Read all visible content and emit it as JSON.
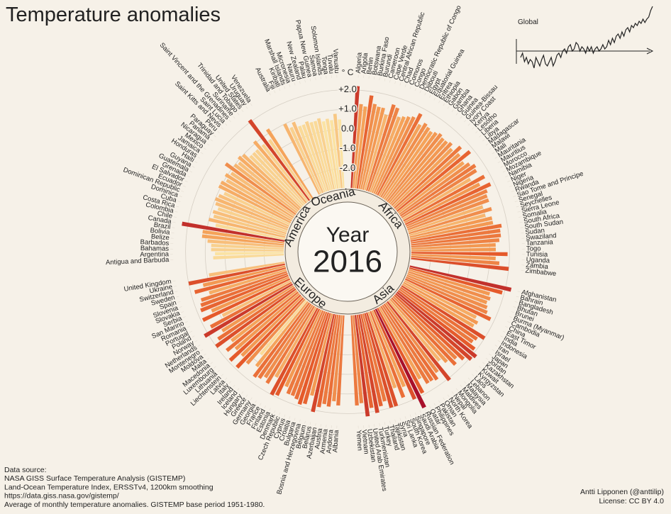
{
  "chart_data": [
    {
      "type": "radial-bar",
      "title": "Temperature anomalies",
      "unit_label": "° C",
      "center_label": "Year",
      "center_value": "2016",
      "ylim": [
        -3,
        2.6
      ],
      "yticks": [
        {
          "value": -2,
          "label": "-2.0"
        },
        {
          "value": -1,
          "label": "-1.0"
        },
        {
          "value": 0,
          "label": "0.0"
        },
        {
          "value": 1,
          "label": "+1.0"
        },
        {
          "value": 2,
          "label": "+2.0"
        }
      ],
      "grid": true,
      "colors": [
        "#fbe3a4",
        "#f5a35a",
        "#e55a2b",
        "#a8102b"
      ],
      "groups": [
        {
          "name": "Africa",
          "categories": [
            "Algeria",
            "Angola",
            "Benin",
            "Botswana",
            "Burkina Faso",
            "Burundi",
            "Cameroon",
            "Cape Verde",
            "Central African Republic",
            "Chad",
            "Comoros",
            "Congo",
            "Democratic Republic of Congo",
            "Djibouti",
            "Egypt",
            "Equatorial Guinea",
            "Eritrea",
            "Ethiopia",
            "Gabon",
            "Gambia",
            "Ghana",
            "Guinea",
            "Guinea-Bissau",
            "Ivory Coast",
            "Kenya",
            "Lesotho",
            "Liberia",
            "Libya",
            "Madagascar",
            "Malawi",
            "Mali",
            "Mauritania",
            "Mauritius",
            "Morocco",
            "Mozambique",
            "Namibia",
            "Niger",
            "Nigeria",
            "Rwanda",
            "Sao Tome and Principe",
            "Senegal",
            "Seychelles",
            "Sierra Leone",
            "Somalia",
            "South Africa",
            "South Sudan",
            "Sudan",
            "Swaziland",
            "Tanzania",
            "Togo",
            "Tunisia",
            "Uganda",
            "Zambia",
            "Zimbabwe"
          ],
          "values": [
            2.2,
            1.3,
            1.2,
            1.8,
            1.4,
            1.3,
            1.3,
            1.0,
            1.6,
            1.5,
            1.1,
            1.2,
            1.3,
            1.4,
            1.7,
            1.2,
            1.4,
            1.3,
            1.2,
            1.3,
            1.4,
            1.3,
            1.3,
            1.4,
            1.2,
            1.6,
            1.3,
            1.8,
            1.2,
            1.4,
            1.6,
            1.5,
            1.0,
            1.7,
            1.3,
            1.8,
            1.5,
            1.4,
            1.4,
            1.0,
            1.4,
            1.0,
            1.3,
            1.3,
            1.7,
            1.6,
            1.6,
            1.5,
            1.3,
            1.3,
            1.9,
            1.3,
            1.5,
            2.0
          ]
        },
        {
          "name": "Asia",
          "categories": [
            "Afghanistan",
            "Bahrain",
            "Bangladesh",
            "Bhutan",
            "Brunei",
            "Burma (Myanmar)",
            "Cambodia",
            "China",
            "East Timor",
            "India",
            "Indonesia",
            "Iran",
            "Israel",
            "Japan",
            "Jordan",
            "Kazakhstan",
            "Kuwait",
            "Kyrgyzstan",
            "Laos",
            "Lebanon",
            "Malaysia",
            "Maldives",
            "Mongolia",
            "Nepal",
            "North Korea",
            "Oman",
            "Pakistan",
            "Philippines",
            "Qatar",
            "Russian Federation",
            "Saudi Arabia",
            "Singapore",
            "South Korea",
            "Sri Lanka",
            "Syria",
            "Tajikistan",
            "Thailand",
            "Turkey",
            "Turkmenistan",
            "United Arab Emirates",
            "Uzbekistan",
            "Vietnam",
            "Yemen"
          ],
          "values": [
            2.3,
            1.9,
            1.3,
            1.4,
            1.3,
            1.4,
            1.5,
            1.8,
            1.1,
            1.3,
            1.2,
            2.0,
            1.7,
            1.6,
            1.9,
            2.2,
            2.1,
            1.8,
            1.5,
            1.7,
            1.3,
            1.0,
            2.1,
            1.4,
            1.7,
            1.6,
            1.6,
            1.2,
            1.9,
            2.6,
            2.0,
            1.2,
            1.7,
            1.1,
            2.0,
            2.0,
            1.6,
            1.8,
            2.1,
            1.8,
            2.2,
            1.5,
            1.6
          ]
        },
        {
          "name": "Europe",
          "categories": [
            "Albania",
            "Andorra",
            "Armenia",
            "Austria",
            "Azerbaijan",
            "Belarus",
            "Belgium",
            "Bosnia and Herzegovina",
            "Bulgaria",
            "Croatia",
            "Cyprus",
            "Czech Republic",
            "Denmark",
            "Estonia",
            "Finland",
            "France",
            "Georgia",
            "Germany",
            "Greece",
            "Hungary",
            "Iceland",
            "Ireland",
            "Italy",
            "Latvia",
            "Liechtenstein",
            "Lithuania",
            "Luxembourg",
            "Macedonia",
            "Malta",
            "Moldova",
            "Montenegro",
            "Netherlands",
            "Norway",
            "Poland",
            "Portugal",
            "Romania",
            "San Marino",
            "Serbia",
            "Slovakia",
            "Slovenia",
            "Spain",
            "Sweden",
            "Switzerland",
            "Ukraine",
            "United Kingdom"
          ],
          "values": [
            1.6,
            1.4,
            1.7,
            1.6,
            1.8,
            2.1,
            1.3,
            1.8,
            1.9,
            1.7,
            1.6,
            1.6,
            1.3,
            1.9,
            2.0,
            1.1,
            1.6,
            1.4,
            1.6,
            1.7,
            1.2,
            0.6,
            1.4,
            1.9,
            1.3,
            1.9,
            1.3,
            1.7,
            1.2,
            2.0,
            1.7,
            1.3,
            2.2,
            1.7,
            0.9,
            1.9,
            1.3,
            1.8,
            1.7,
            1.6,
            1.1,
            1.8,
            1.3,
            2.0,
            0.9
          ]
        },
        {
          "name": "America",
          "categories": [
            "Antigua and Barbuda",
            "Argentina",
            "Bahamas",
            "Barbados",
            "Belize",
            "Bolivia",
            "Brazil",
            "Canada",
            "Chile",
            "Colombia",
            "Costa Rica",
            "Cuba",
            "Dominica",
            "Dominican Republic",
            "Ecuador",
            "El Salvador",
            "Grenada",
            "Guatemala",
            "Guyana",
            "Haiti",
            "Honduras",
            "Jamaica",
            "Mexico",
            "Nicaragua",
            "Panama",
            "Paraguay",
            "Peru",
            "Saint Kitts and Nevis",
            "Saint Lucia",
            "Saint Vincent and the Grenadines",
            "Suriname",
            "Trinidad and Tobago",
            "United States",
            "Uruguay",
            "Venezuela"
          ],
          "values": [
            0.6,
            0.5,
            0.7,
            0.7,
            0.9,
            1.2,
            1.2,
            2.3,
            0.6,
            1.0,
            0.8,
            0.9,
            0.7,
            0.9,
            1.0,
            0.9,
            0.7,
            1.1,
            1.1,
            0.9,
            1.1,
            0.9,
            1.4,
            1.0,
            0.9,
            1.1,
            1.0,
            0.7,
            0.7,
            0.7,
            1.1,
            0.7,
            2.1,
            0.7,
            1.2
          ]
        },
        {
          "name": "Oceania",
          "categories": [
            "Australia",
            "Fiji",
            "Kiribati",
            "Marshall Islands",
            "Micronesia",
            "Nauru",
            "New Zealand",
            "Palau",
            "Papua New Guinea",
            "Samoa",
            "Solomon Islands",
            "Tonga",
            "Tuvalu",
            "Vanuatu"
          ],
          "values": [
            1.0,
            0.7,
            0.9,
            0.6,
            0.6,
            0.7,
            0.6,
            0.6,
            0.7,
            0.5,
            0.6,
            0.5,
            0.8,
            0.5
          ]
        }
      ],
      "notes": [
        "Data source:",
        "NASA GISS Surface Temperature Analysis (GISTEMP)",
        "Land-Ocean Temperature Index, ERSSTv4, 1200km smoothing",
        "https://data.giss.nasa.gov/gistemp/",
        "Average of monthly temperature anomalies. GISTEMP base period 1951-1980."
      ],
      "credits": [
        "Antti Lipponen (@anttilip)",
        "License: CC BY 4.0"
      ]
    },
    {
      "type": "line",
      "label": "Global",
      "color": "#222222",
      "ylim": [
        -0.6,
        1.05
      ],
      "values": [
        -0.2,
        -0.1,
        -0.3,
        -0.2,
        -0.35,
        -0.25,
        -0.3,
        -0.45,
        -0.2,
        -0.3,
        -0.4,
        -0.25,
        -0.15,
        -0.35,
        -0.4,
        -0.3,
        -0.2,
        -0.4,
        -0.3,
        -0.15,
        -0.1,
        -0.2,
        -0.05,
        0.0,
        -0.1,
        0.05,
        0.1,
        -0.05,
        0.0,
        0.15,
        0.1,
        -0.05,
        0.05,
        0.0,
        -0.1,
        0.05,
        -0.05,
        0.05,
        -0.1,
        0.0,
        0.05,
        -0.05,
        0.0,
        0.1,
        0.0,
        0.05,
        0.2,
        0.1,
        0.25,
        0.15,
        0.3,
        0.35,
        0.25,
        0.4,
        0.3,
        0.45,
        0.5,
        0.4,
        0.55,
        0.5,
        0.6,
        0.55,
        0.65,
        0.6,
        0.7,
        0.62,
        0.7,
        0.75,
        0.9,
        1.0
      ]
    }
  ]
}
